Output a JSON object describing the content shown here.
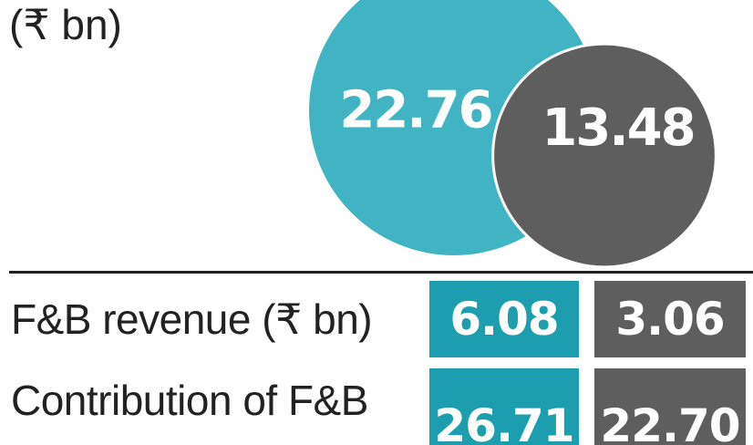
{
  "unit_label": "(₹ bn)",
  "colors": {
    "series_a": "#41b4c4",
    "series_b": "#5e5e5e",
    "table_a": "#1c9eae",
    "table_b": "#5e5e5e"
  },
  "chart_data": {
    "type": "bubble",
    "unit": "(₹ bn)",
    "values": [
      "22.76",
      "13.48"
    ]
  },
  "table": {
    "rows": [
      {
        "label": "F&B revenue (₹ bn)",
        "values": [
          "6.08",
          "3.06"
        ]
      },
      {
        "label": "Contribution of F&B",
        "values": [
          "26.71",
          "22.70"
        ]
      }
    ]
  }
}
